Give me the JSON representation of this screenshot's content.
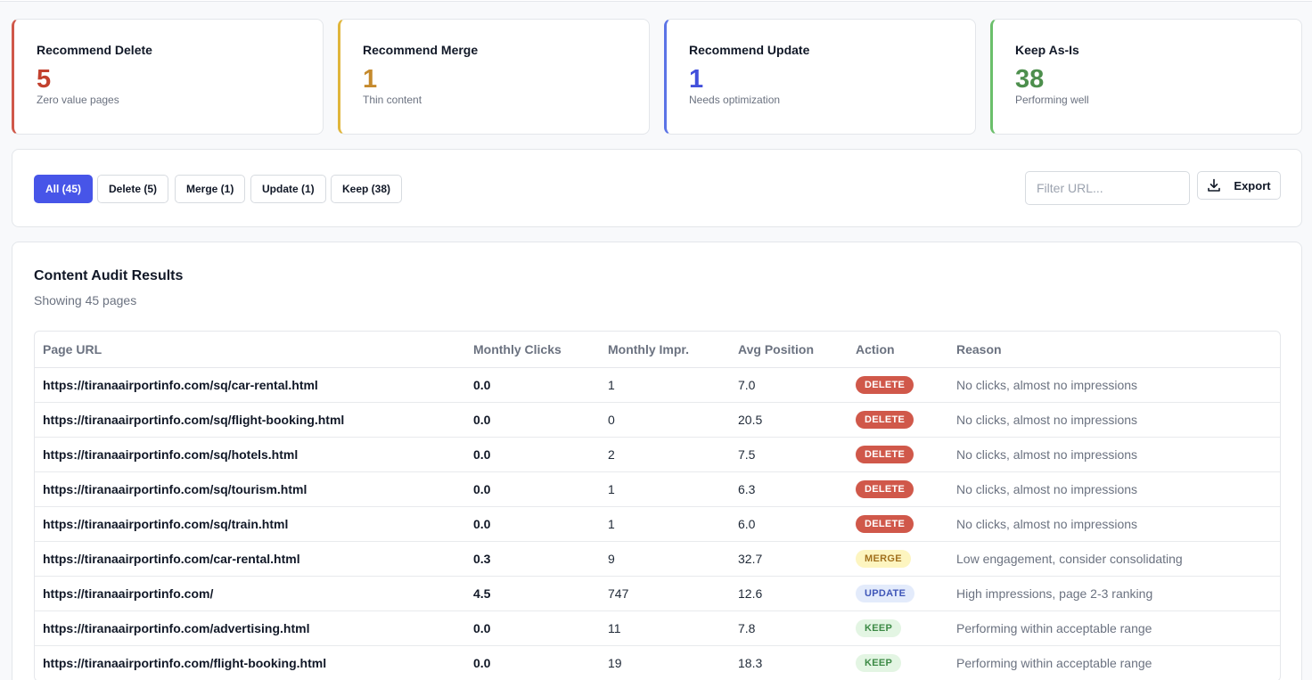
{
  "cards": {
    "delete": {
      "title": "Recommend Delete",
      "value": "5",
      "sub": "Zero value pages",
      "color": "#d0584a"
    },
    "merge": {
      "title": "Recommend Merge",
      "value": "1",
      "sub": "Thin content",
      "color": "#e0b63c"
    },
    "update": {
      "title": "Recommend Update",
      "value": "1",
      "sub": "Needs optimization",
      "color": "#5b73e6"
    },
    "keep": {
      "title": "Keep As-Is",
      "value": "38",
      "sub": "Performing well",
      "color": "#6bbf6b"
    }
  },
  "filters": {
    "all": "All (45)",
    "delete": "Delete (5)",
    "merge": "Merge (1)",
    "update": "Update (1)",
    "keep": "Keep (38)",
    "active": "all",
    "url_placeholder": "Filter URL...",
    "export_label": "Export",
    "accent_color": "#4755e8"
  },
  "results": {
    "title": "Content Audit Results",
    "subtitle": "Showing 45 pages",
    "columns": [
      "Page URL",
      "Monthly Clicks",
      "Monthly Impr.",
      "Avg Position",
      "Action",
      "Reason"
    ],
    "rows": [
      {
        "url": "https://tiranaairportinfo.com/sq/car-rental.html",
        "clicks": "0.0",
        "impr": "1",
        "pos": "7.0",
        "action": "DELETE",
        "reason": "No clicks, almost no impressions"
      },
      {
        "url": "https://tiranaairportinfo.com/sq/flight-booking.html",
        "clicks": "0.0",
        "impr": "0",
        "pos": "20.5",
        "action": "DELETE",
        "reason": "No clicks, almost no impressions"
      },
      {
        "url": "https://tiranaairportinfo.com/sq/hotels.html",
        "clicks": "0.0",
        "impr": "2",
        "pos": "7.5",
        "action": "DELETE",
        "reason": "No clicks, almost no impressions"
      },
      {
        "url": "https://tiranaairportinfo.com/sq/tourism.html",
        "clicks": "0.0",
        "impr": "1",
        "pos": "6.3",
        "action": "DELETE",
        "reason": "No clicks, almost no impressions"
      },
      {
        "url": "https://tiranaairportinfo.com/sq/train.html",
        "clicks": "0.0",
        "impr": "1",
        "pos": "6.0",
        "action": "DELETE",
        "reason": "No clicks, almost no impressions"
      },
      {
        "url": "https://tiranaairportinfo.com/car-rental.html",
        "clicks": "0.3",
        "impr": "9",
        "pos": "32.7",
        "action": "MERGE",
        "reason": "Low engagement, consider consolidating"
      },
      {
        "url": "https://tiranaairportinfo.com/",
        "clicks": "4.5",
        "impr": "747",
        "pos": "12.6",
        "action": "UPDATE",
        "reason": "High impressions, page 2-3 ranking"
      },
      {
        "url": "https://tiranaairportinfo.com/advertising.html",
        "clicks": "0.0",
        "impr": "11",
        "pos": "7.8",
        "action": "KEEP",
        "reason": "Performing within acceptable range"
      },
      {
        "url": "https://tiranaairportinfo.com/flight-booking.html",
        "clicks": "0.0",
        "impr": "19",
        "pos": "18.3",
        "action": "KEEP",
        "reason": "Performing within acceptable range"
      }
    ]
  }
}
